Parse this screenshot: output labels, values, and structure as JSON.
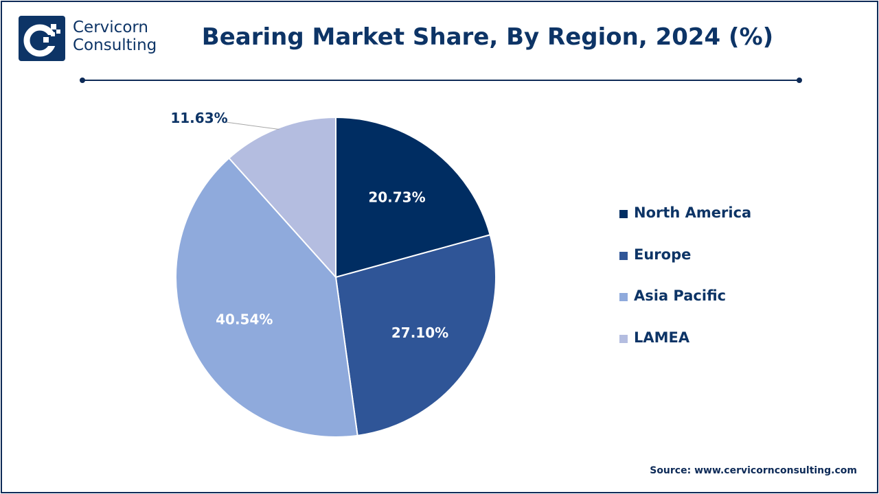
{
  "brand": {
    "line1": "Cervicorn",
    "line2": "Consulting",
    "color": "#0d3466",
    "icon": "cervicorn-logo-icon"
  },
  "chart_data": {
    "type": "pie",
    "title": "Bearing Market Share, By Region, 2024 (%)",
    "categories": [
      "North America",
      "Europe",
      "Asia Pacific",
      "LAMEA"
    ],
    "values": [
      20.73,
      27.1,
      40.54,
      11.63
    ],
    "labels": [
      "20.73%",
      "27.10%",
      "40.54%",
      "11.63%"
    ],
    "colors": [
      "#002d62",
      "#2f5597",
      "#8faadc",
      "#b4bde0"
    ],
    "label_colors": [
      "#ffffff",
      "#ffffff",
      "#ffffff",
      "#0d3466"
    ],
    "start_angle_deg": 0,
    "direction": "clockwise",
    "legend_position": "right"
  },
  "source": "Source: www.cervicornconsulting.com"
}
